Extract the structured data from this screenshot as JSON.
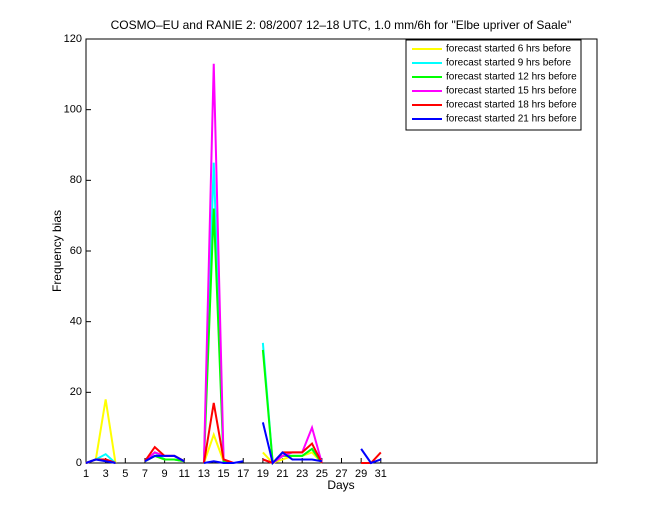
{
  "chart_data": {
    "type": "line",
    "title": "COSMO–EU and RANIE 2: 08/2007 12–18 UTC, 1.0 mm/6h for \"Elbe upriver of Saale\"",
    "x_label": "Days",
    "y_label": "Frequency bias",
    "x": [
      1,
      2,
      3,
      4,
      5,
      6,
      7,
      8,
      9,
      10,
      11,
      12,
      13,
      14,
      15,
      16,
      17,
      18,
      19,
      20,
      21,
      22,
      23,
      24,
      25,
      26,
      27,
      28,
      29,
      30,
      31
    ],
    "xlim": [
      1,
      53
    ],
    "xticks": [
      1,
      3,
      5,
      7,
      9,
      11,
      13,
      15,
      17,
      19,
      21,
      23,
      25,
      27,
      29,
      31
    ],
    "ylim": [
      0,
      120
    ],
    "yticks": [
      0,
      20,
      40,
      60,
      80,
      100,
      120
    ],
    "legend_position": "upper right",
    "series": [
      {
        "name": "forecast started 6 hrs before",
        "color": "#ffff00",
        "values": [
          0,
          1,
          18,
          0,
          null,
          null,
          0.5,
          3,
          1,
          1,
          0.5,
          null,
          0,
          8,
          0.5,
          0,
          null,
          null,
          3,
          0,
          1,
          2,
          2,
          3,
          0,
          null,
          null,
          null,
          null,
          null,
          null
        ]
      },
      {
        "name": "forecast started 9 hrs before",
        "color": "#00ffff",
        "values": [
          0,
          1,
          2.5,
          0,
          null,
          null,
          0.5,
          3,
          1,
          1,
          0.5,
          null,
          0,
          85,
          0.5,
          0,
          null,
          null,
          34,
          0,
          2,
          2,
          2,
          4,
          0,
          null,
          null,
          null,
          null,
          null,
          null
        ]
      },
      {
        "name": "forecast started 12 hrs before",
        "color": "#00ff00",
        "values": [
          0,
          1,
          1,
          0,
          null,
          null,
          0.5,
          2,
          1,
          1,
          0.5,
          null,
          0,
          72,
          0.5,
          0,
          null,
          null,
          32,
          0,
          2,
          2,
          2,
          4,
          0,
          null,
          null,
          null,
          null,
          null,
          null
        ]
      },
      {
        "name": "forecast started 15 hrs before",
        "color": "#ff00ff",
        "values": [
          0,
          1,
          1,
          0,
          null,
          null,
          0.5,
          3,
          2,
          2,
          0.5,
          null,
          0,
          113,
          1,
          0,
          null,
          null,
          1,
          0,
          2,
          3,
          3,
          10,
          0,
          null,
          null,
          null,
          null,
          null,
          null
        ]
      },
      {
        "name": "forecast started 18 hrs before",
        "color": "#ff0000",
        "values": [
          0,
          1,
          1,
          0,
          null,
          null,
          0.5,
          4.5,
          2,
          2,
          0.5,
          null,
          0,
          17,
          1,
          0,
          null,
          null,
          1,
          0,
          3,
          3,
          3,
          5.5,
          0,
          null,
          null,
          null,
          0,
          0,
          3
        ]
      },
      {
        "name": "forecast started 21 hrs before",
        "color": "#0000ff",
        "values": [
          0,
          1,
          0.5,
          0,
          null,
          null,
          0.5,
          2,
          2,
          2,
          0.5,
          null,
          0,
          0.5,
          0,
          0,
          0.5,
          null,
          11.5,
          0,
          3,
          1,
          1,
          1,
          0.5,
          null,
          null,
          null,
          4,
          0,
          1
        ]
      }
    ]
  }
}
